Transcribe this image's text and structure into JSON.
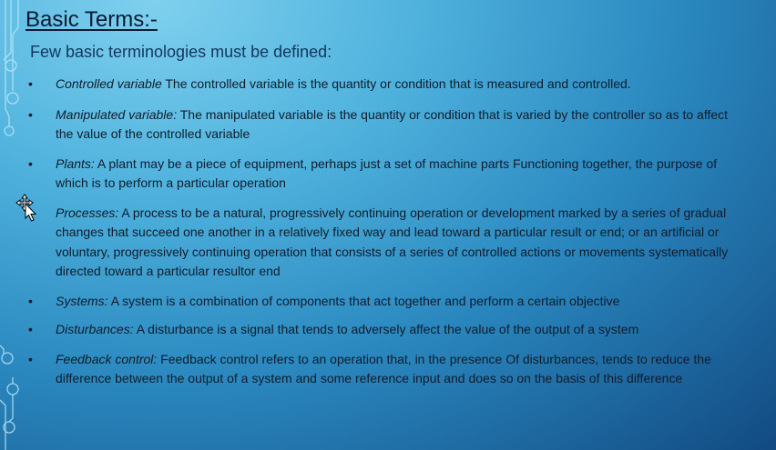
{
  "slide": {
    "title": "Basic Terms:-",
    "subtitle": "Few basic terminologies must be defined:",
    "terms": [
      {
        "name": "Controlled variable",
        "text": " The controlled variable is the quantity or condition that is measured and controlled."
      },
      {
        "name": "Manipulated variable:",
        "text": " The manipulated variable is the quantity or condition that is varied by the controller so as to affect the value of the controlled variable"
      },
      {
        "name": "Plants:",
        "text": " A plant may be a piece of equipment, perhaps just a set of machine parts Functioning together, the purpose of which is to perform a particular operation"
      },
      {
        "name": "Processes:",
        "text": " A process to be a natural, progressively continuing operation or development marked by a series of gradual changes that succeed one another in a relatively fixed way and lead toward a particular result or end; or an artificial or voluntary, progressively continuing operation that consists of a series of controlled actions or movements systematically directed toward a particular resultor end"
      },
      {
        "name": "Systems:",
        "text": " A system is a combination of components that act together and perform a certain objective"
      },
      {
        "name": "Disturbances:",
        "text": " A disturbance is a signal that tends to adversely affect the value of the output of a system"
      },
      {
        "name": "Feedback control:",
        "text": " Feedback control refers to an operation that, in the presence Of disturbances, tends to reduce the difference between the output of a system and some reference input and does so on the basis of this difference"
      }
    ],
    "bullet_char": "•"
  },
  "icons": {
    "cursor": "move-cursor-icon",
    "decoration": "circuit-decoration"
  }
}
